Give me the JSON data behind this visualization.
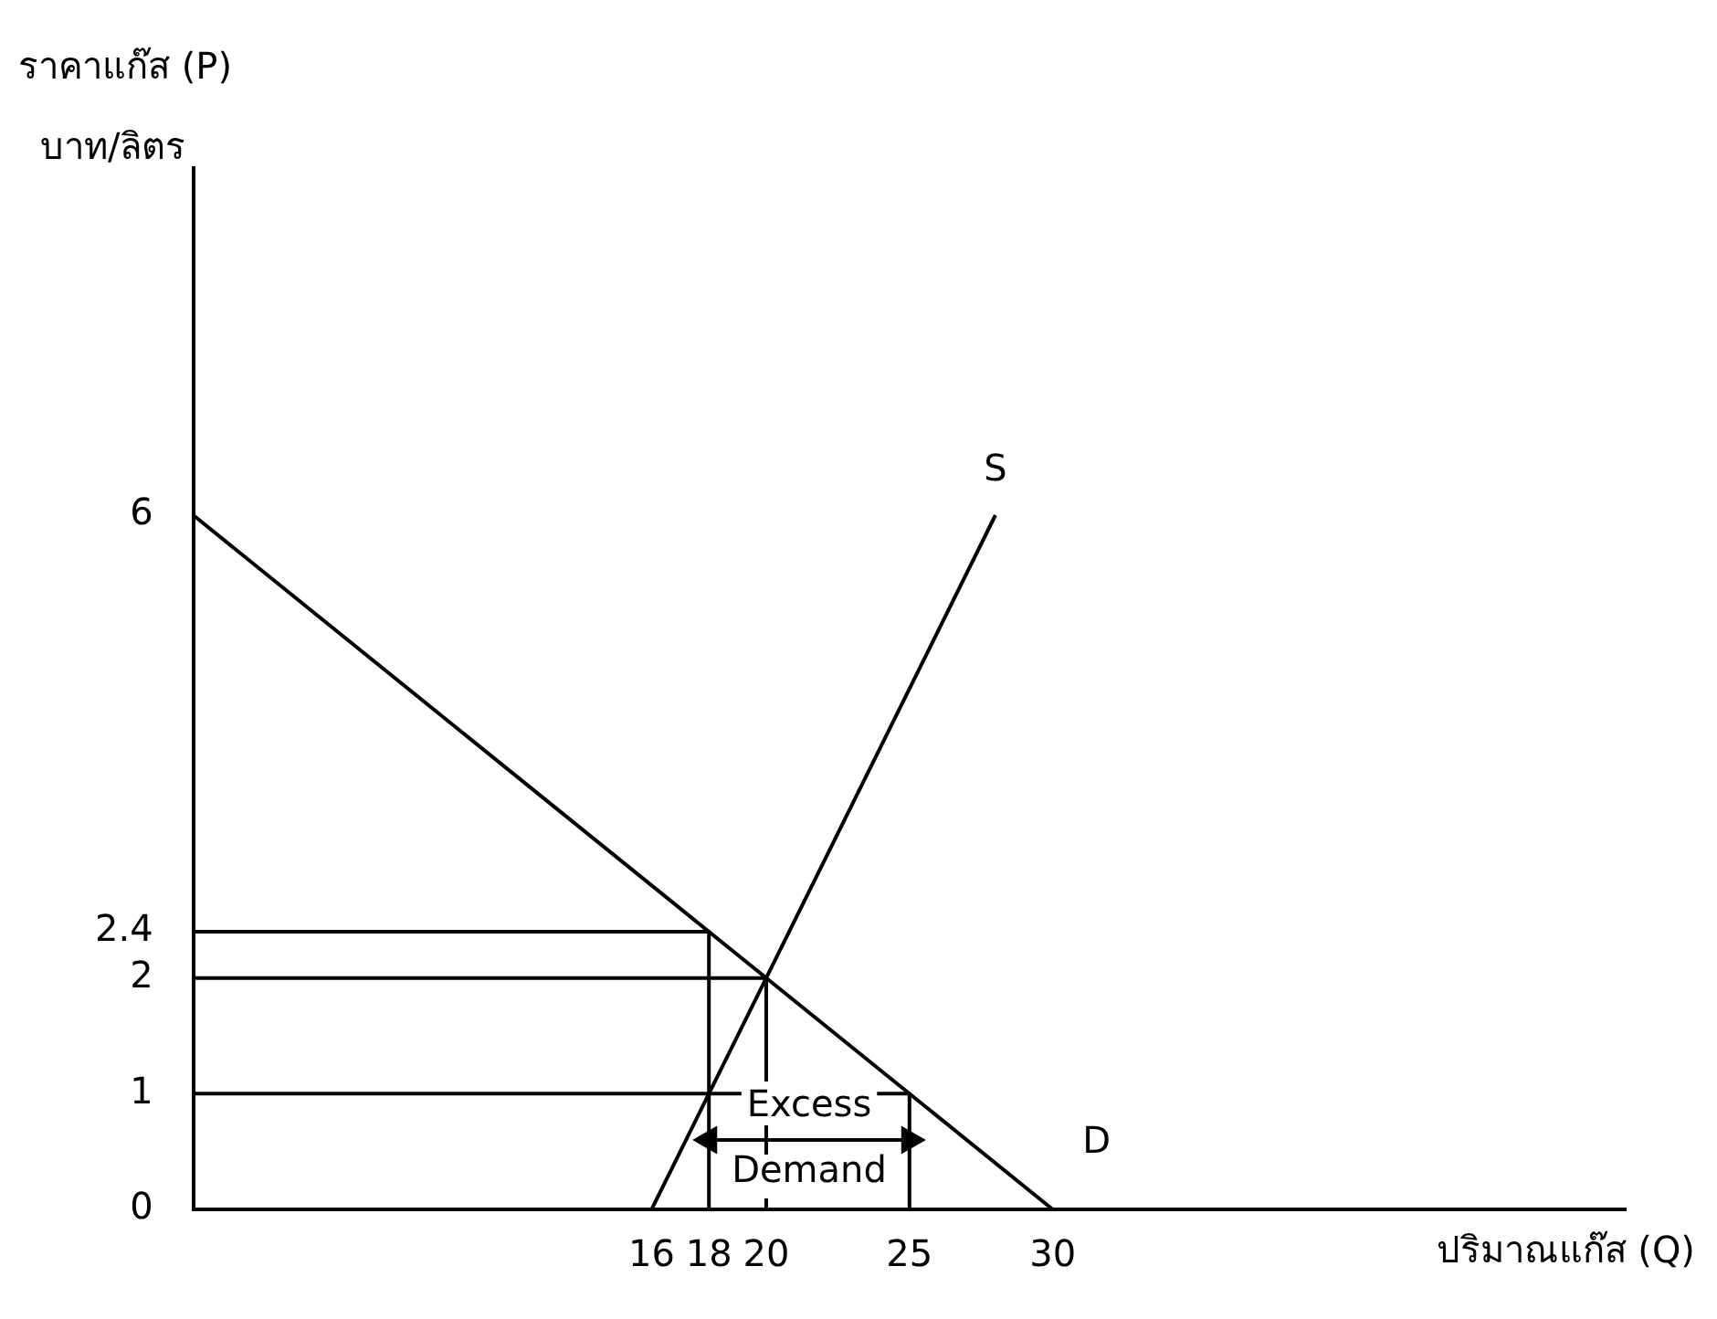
{
  "chart_data": {
    "type": "line",
    "xlabel": "ปริมาณแก๊ส (Q)",
    "ylabel": "ราคาแก๊ส (P)\nบาท/ลิตร",
    "xlim": [
      0,
      50
    ],
    "xticks": [
      16,
      18,
      20,
      25,
      30
    ],
    "ylim": [
      0,
      9
    ],
    "yticks": [
      0,
      1,
      2,
      2.4,
      6
    ],
    "grid": false,
    "legend": false,
    "marker": "none",
    "series": [
      {
        "name": "S",
        "color": "#000000",
        "x": [
          16,
          28
        ],
        "values": [
          0,
          6
        ]
      },
      {
        "name": "D",
        "color": "#000000",
        "x": [
          0,
          30
        ],
        "values": [
          6,
          0
        ]
      },
      {
        "color": "#000000",
        "x": [
          0,
          18,
          18
        ],
        "values": [
          2.4,
          2.4,
          0
        ]
      },
      {
        "color": "#000000",
        "x": [
          0,
          20,
          20
        ],
        "values": [
          2,
          2,
          0
        ]
      },
      {
        "color": "#000000",
        "x": [
          0,
          25,
          25
        ],
        "values": [
          1,
          1,
          0
        ]
      },
      {
        "color": "#000000",
        "marker": "triangle",
        "x": [
          18,
          25
        ],
        "values": [
          0.6,
          0.6
        ]
      }
    ],
    "annotations": [
      {
        "text": "Excess Demand",
        "x": 21.5,
        "y": 0.6
      }
    ]
  }
}
